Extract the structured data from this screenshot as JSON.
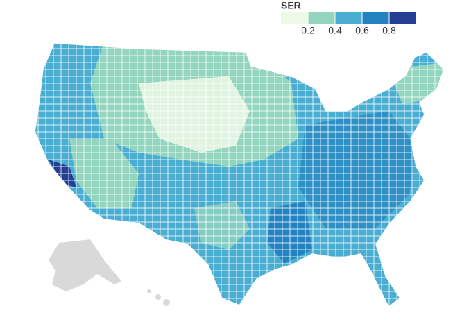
{
  "chart_data": {
    "type": "choropleth",
    "legend": {
      "title": "SER",
      "colors": [
        "#eef8e6",
        "#93d5bf",
        "#4aaed2",
        "#2383c1",
        "#253f94"
      ],
      "ticks": [
        0.2,
        0.4,
        0.6,
        0.8
      ]
    }
  }
}
